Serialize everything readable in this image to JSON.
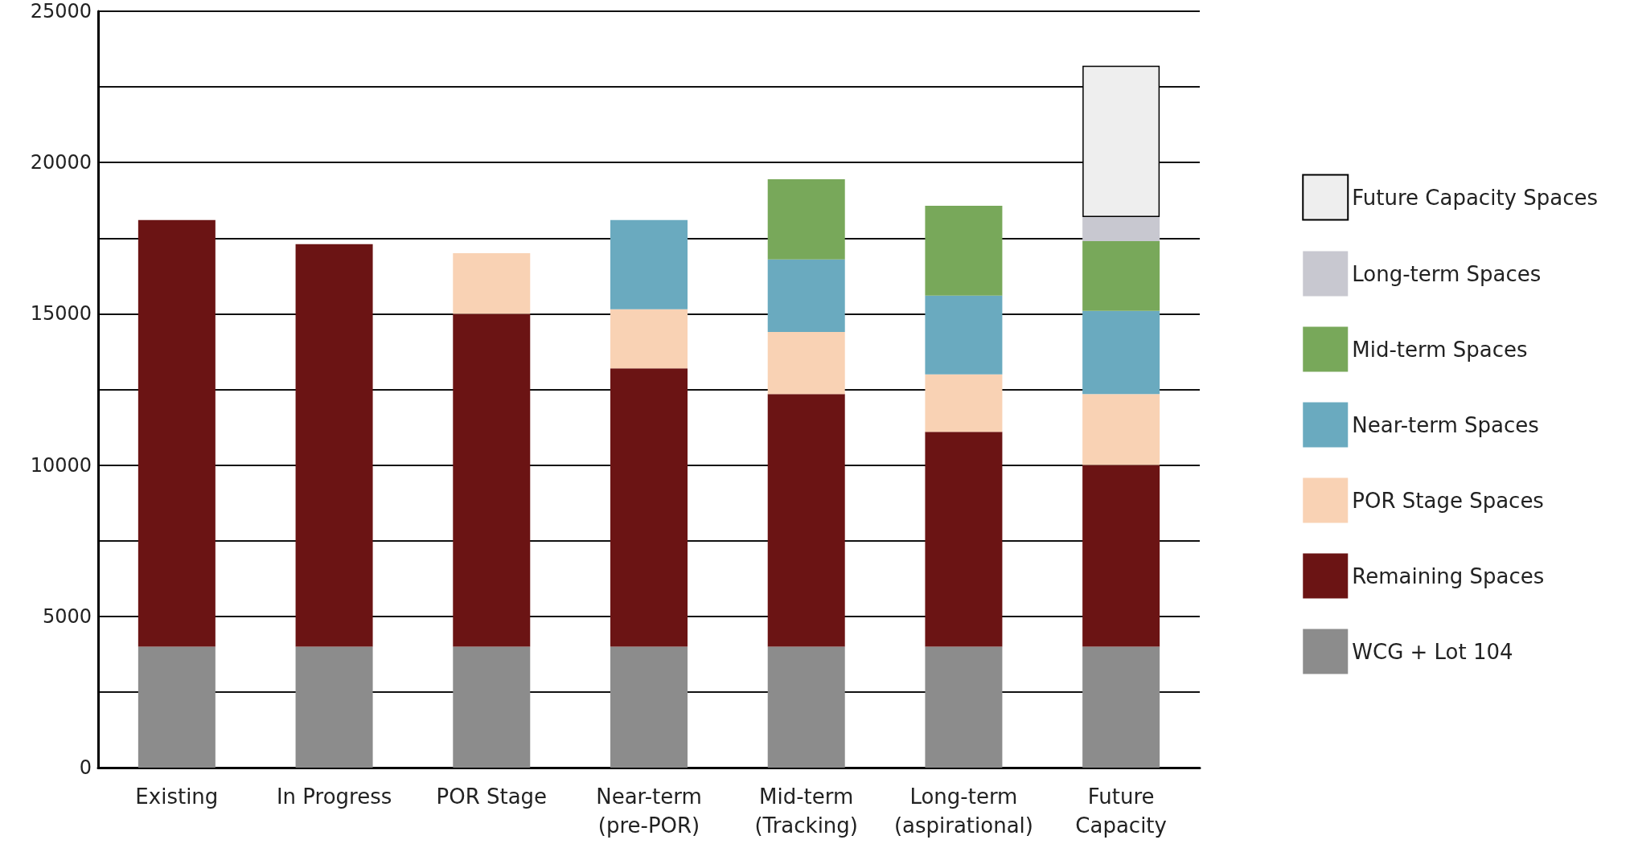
{
  "chart_data": {
    "type": "bar",
    "stacked": true,
    "categories": [
      "Existing",
      "In Progress",
      "POR Stage",
      "Near-term\n(pre-POR)",
      "Mid-term\n(Tracking)",
      "Long-term\n(aspirational)",
      "Future\nCapacity"
    ],
    "series": [
      {
        "name": "WCG + Lot 104",
        "color": "#8c8c8c",
        "values": [
          4000,
          4000,
          4000,
          4000,
          4000,
          4000,
          4000
        ]
      },
      {
        "name": "Remaining Spaces",
        "color": "#6b1414",
        "values": [
          14100,
          13300,
          11000,
          9200,
          8350,
          7100,
          6000
        ]
      },
      {
        "name": "POR Stage Spaces",
        "color": "#f9d2b4",
        "values": [
          null,
          null,
          2000,
          1950,
          2050,
          1900,
          2350
        ]
      },
      {
        "name": "Near-term Spaces",
        "color": "#6aaabf",
        "values": [
          null,
          null,
          null,
          2950,
          2400,
          2600,
          2750
        ]
      },
      {
        "name": "Mid-term Spaces",
        "color": "#78a85a",
        "values": [
          null,
          null,
          null,
          null,
          2650,
          2970,
          2300
        ]
      },
      {
        "name": "Long-term Spaces",
        "color": "#c8c8d0",
        "values": [
          null,
          null,
          null,
          null,
          null,
          null,
          800
        ]
      },
      {
        "name": "Future Capacity Spaces",
        "color": "#eeeeee",
        "values": [
          null,
          null,
          null,
          null,
          null,
          null,
          5000
        ]
      }
    ],
    "ylim": [
      0,
      25000
    ],
    "yticks": [
      0,
      {
        "value": 2500,
        "label": null
      },
      5000,
      {
        "value": 7500,
        "label": null
      },
      10000,
      {
        "value": 12500,
        "label": null
      },
      15000,
      {
        "value": 17500,
        "label": null
      },
      20000,
      {
        "value": 22500,
        "label": null
      },
      25000
    ],
    "grid": "y",
    "legend": "right"
  }
}
